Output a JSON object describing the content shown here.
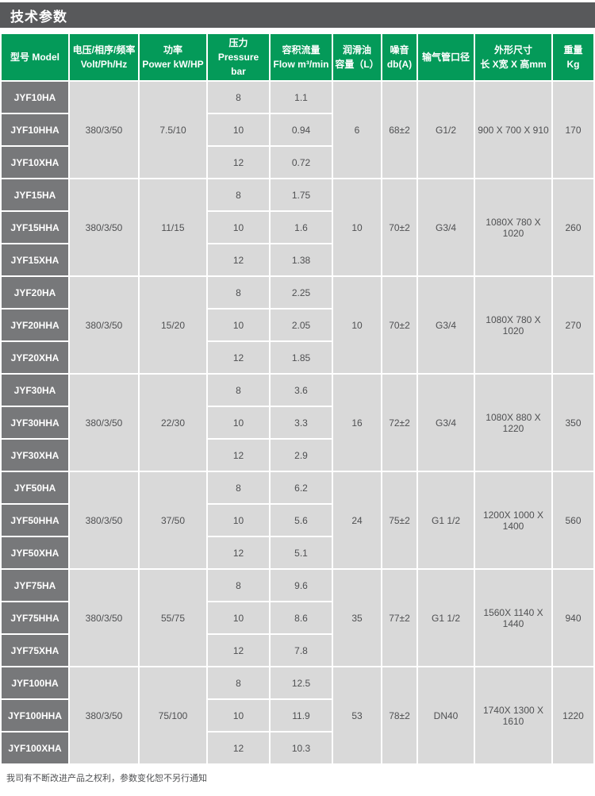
{
  "page": {
    "title": "技术参数",
    "footer_note": "我司有不断改进产品之权利，参数变化恕不另行通知"
  },
  "colors": {
    "title_bar_bg": "#58595b",
    "header_green": "#049a59",
    "model_cell_bg": "#77787a",
    "data_cell_bg": "#d9d9d9",
    "text_light": "#ffffff",
    "text_dark": "#4f5052"
  },
  "table": {
    "headers": [
      {
        "line1": "型号 Model",
        "line2": ""
      },
      {
        "line1": "电压/相序/频率",
        "line2": "Volt/Ph/Hz"
      },
      {
        "line1": "功率",
        "line2": "Power kW/HP"
      },
      {
        "line1": "压力",
        "line2": "Pressure bar"
      },
      {
        "line1": "容积流量",
        "line2": "Flow m³/min"
      },
      {
        "line1": "润滑油",
        "line2": "容量（L）"
      },
      {
        "line1": "噪音",
        "line2": "db(A)"
      },
      {
        "line1": "输气管口径",
        "line2": ""
      },
      {
        "line1": "外形尺寸",
        "line2": "长 X宽 X 高mm"
      },
      {
        "line1": "重量",
        "line2": "Kg"
      }
    ],
    "groups": [
      {
        "models": [
          "JYF10HA",
          "JYF10HHA",
          "JYF10XHA"
        ],
        "voltage": "380/3/50",
        "power": "7.5/10",
        "pressures": [
          "8",
          "10",
          "12"
        ],
        "flows": [
          "1.1",
          "0.94",
          "0.72"
        ],
        "oil_capacity": "6",
        "noise": "68±2",
        "pipe_diameter": "G1/2",
        "dimensions": "900 X 700 X 910",
        "weight": "170"
      },
      {
        "models": [
          "JYF15HA",
          "JYF15HHA",
          "JYF15XHA"
        ],
        "voltage": "380/3/50",
        "power": "11/15",
        "pressures": [
          "8",
          "10",
          "12"
        ],
        "flows": [
          "1.75",
          "1.6",
          "1.38"
        ],
        "oil_capacity": "10",
        "noise": "70±2",
        "pipe_diameter": "G3/4",
        "dimensions": "1080X 780 X 1020",
        "weight": "260"
      },
      {
        "models": [
          "JYF20HA",
          "JYF20HHA",
          "JYF20XHA"
        ],
        "voltage": "380/3/50",
        "power": "15/20",
        "pressures": [
          "8",
          "10",
          "12"
        ],
        "flows": [
          "2.25",
          "2.05",
          "1.85"
        ],
        "oil_capacity": "10",
        "noise": "70±2",
        "pipe_diameter": "G3/4",
        "dimensions": "1080X 780 X 1020",
        "weight": "270"
      },
      {
        "models": [
          "JYF30HA",
          "JYF30HHA",
          "JYF30XHA"
        ],
        "voltage": "380/3/50",
        "power": "22/30",
        "pressures": [
          "8",
          "10",
          "12"
        ],
        "flows": [
          "3.6",
          "3.3",
          "2.9"
        ],
        "oil_capacity": "16",
        "noise": "72±2",
        "pipe_diameter": "G3/4",
        "dimensions": "1080X 880 X 1220",
        "weight": "350"
      },
      {
        "models": [
          "JYF50HA",
          "JYF50HHA",
          "JYF50XHA"
        ],
        "voltage": "380/3/50",
        "power": "37/50",
        "pressures": [
          "8",
          "10",
          "12"
        ],
        "flows": [
          "6.2",
          "5.6",
          "5.1"
        ],
        "oil_capacity": "24",
        "noise": "75±2",
        "pipe_diameter": "G1 1/2",
        "dimensions": "1200X 1000 X 1400",
        "weight": "560"
      },
      {
        "models": [
          "JYF75HA",
          "JYF75HHA",
          "JYF75XHA"
        ],
        "voltage": "380/3/50",
        "power": "55/75",
        "pressures": [
          "8",
          "10",
          "12"
        ],
        "flows": [
          "9.6",
          "8.6",
          "7.8"
        ],
        "oil_capacity": "35",
        "noise": "77±2",
        "pipe_diameter": "G1 1/2",
        "dimensions": "1560X 1140 X 1440",
        "weight": "940"
      },
      {
        "models": [
          "JYF100HA",
          "JYF100HHA",
          "JYF100XHA"
        ],
        "voltage": "380/3/50",
        "power": "75/100",
        "pressures": [
          "8",
          "10",
          "12"
        ],
        "flows": [
          "12.5",
          "11.9",
          "10.3"
        ],
        "oil_capacity": "53",
        "noise": "78±2",
        "pipe_diameter": "DN40",
        "dimensions": "1740X 1300 X 1610",
        "weight": "1220"
      }
    ]
  }
}
